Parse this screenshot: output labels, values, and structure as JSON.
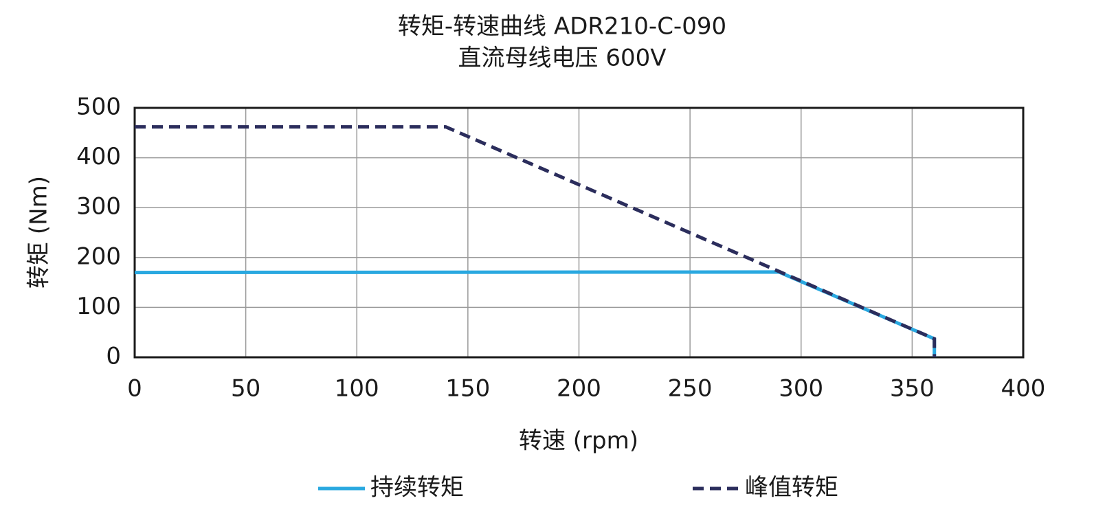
{
  "chart_data": {
    "type": "line",
    "title": "转矩-转速曲线 ADR210-C-090",
    "subtitle": "直流母线电压 600V",
    "x_label": "转速 (rpm)",
    "y_label": "转矩 (Nm)",
    "xlim": [
      0,
      400
    ],
    "xticks": [
      0,
      50,
      100,
      150,
      200,
      250,
      300,
      350,
      400
    ],
    "ylim": [
      0,
      500
    ],
    "yticks": [
      0,
      100,
      200,
      300,
      400,
      500
    ],
    "grid": true,
    "legend": "bottom",
    "series": [
      {
        "name": "持续转矩",
        "color": "#29a8e0",
        "line_style": "solid",
        "x": [
          0,
          290,
          360,
          360
        ],
        "values": [
          170,
          171,
          37,
          0
        ]
      },
      {
        "name": "峰值转矩",
        "color": "#2b2d5c",
        "line_style": "dashed",
        "x": [
          0,
          140,
          360,
          360
        ],
        "values": [
          462,
          462,
          37,
          0
        ]
      }
    ]
  }
}
